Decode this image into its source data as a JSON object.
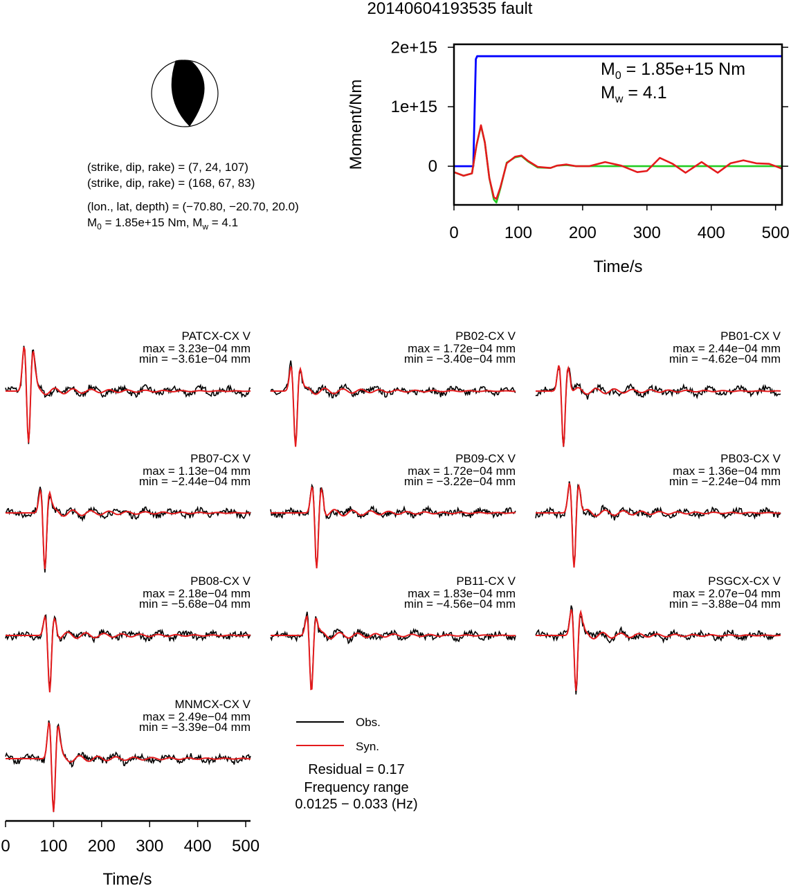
{
  "title": "20140604193535 fault",
  "solution": {
    "plane1": "(strike, dip, rake) = (7, 24, 107)",
    "plane2": "(strike, dip, rake) = (168, 67, 83)",
    "location": "(lon., lat, depth) = (−70.80, −20.70, 20.0)",
    "moment_label": "M",
    "moment_sub": "0",
    "moment_value": " = 1.85e+15 Nm, M",
    "mw_sub": "w",
    "mw_value": " = 4.1"
  },
  "colors": {
    "observed": "#000000",
    "synthetic": "#e41a1c",
    "cumulative_moment": "#0000ff",
    "moment_rate_green": "#22cc22",
    "beachball_fill": "#000000"
  },
  "legend": {
    "obs": "Obs.",
    "syn": "Syn.",
    "residual": "Residual = 0.17",
    "freq_title": "Frequency range",
    "freq_value": "0.0125 − 0.033 (Hz)"
  },
  "chart_data": [
    {
      "type": "line",
      "title": "",
      "xlabel": "Time/s",
      "ylabel": "Moment/Nm",
      "xlim": [
        0,
        510
      ],
      "ylim": [
        -650000000000000.0,
        2050000000000000.0
      ],
      "xticks": [
        "0",
        "100",
        "200",
        "300",
        "400",
        "500"
      ],
      "yticks": [
        "0",
        "1e+15",
        "2e+15"
      ],
      "annotation": {
        "m0_label": "M",
        "m0_sub": "0",
        "m0_value": " = 1.85e+15 Nm",
        "mw_label": "M",
        "mw_sub": "w",
        "mw_value": " = 4.1"
      },
      "series": [
        {
          "x": [
            0,
            30,
            34,
            36,
            510
          ],
          "y": [
            0,
            0,
            1800000000000000.0,
            1850000000000000.0,
            1850000000000000.0
          ]
        },
        {
          "x": [
            0,
            15,
            28,
            35,
            42,
            48,
            55,
            62,
            66,
            72,
            82,
            95,
            105,
            115,
            130,
            150,
            160,
            175,
            190,
            210,
            230,
            260,
            300,
            400,
            510
          ],
          "y": [
            -100000000000000.0,
            -160000000000000.0,
            -120000000000000.0,
            350000000000000.0,
            680000000000000.0,
            400000000000000.0,
            -200000000000000.0,
            -560000000000000.0,
            -610000000000000.0,
            -380000000000000.0,
            60000000000000.0,
            150000000000000.0,
            170000000000000.0,
            80000000000000.0,
            -20000000000000.0,
            -30000000000000.0,
            10000000000000.0,
            20000000000000.0,
            0,
            0,
            0,
            0,
            0,
            0,
            0
          ]
        },
        {
          "x": [
            0,
            15,
            28,
            35,
            42,
            48,
            55,
            62,
            66,
            72,
            82,
            95,
            105,
            115,
            130,
            150,
            160,
            175,
            190,
            210,
            235,
            260,
            285,
            300,
            320,
            340,
            360,
            385,
            410,
            430,
            450,
            470,
            490,
            510
          ],
          "y": [
            -100000000000000.0,
            -160000000000000.0,
            -120000000000000.0,
            350000000000000.0,
            690000000000000.0,
            400000000000000.0,
            -200000000000000.0,
            -520000000000000.0,
            -550000000000000.0,
            -360000000000000.0,
            50000000000000.0,
            160000000000000.0,
            180000000000000.0,
            90000000000000.0,
            -10000000000000.0,
            -30000000000000.0,
            10000000000000.0,
            30000000000000.0,
            0,
            0,
            70000000000000.0,
            10000000000000.0,
            -100000000000000.0,
            -80000000000000.0,
            140000000000000.0,
            40000000000000.0,
            -110000000000000.0,
            70000000000000.0,
            -110000000000000.0,
            50000000000000.0,
            100000000000000.0,
            50000000000000.0,
            40000000000000.0,
            -40000000000000.0
          ]
        }
      ]
    },
    {
      "type": "line",
      "title": "",
      "xlabel": "Time/s",
      "ylabel": "",
      "xlim": [
        0,
        510
      ],
      "xticks": [
        "0",
        "100",
        "200",
        "300",
        "400",
        "500"
      ],
      "legend": [
        "Obs.",
        "Syn."
      ],
      "stations": [
        {
          "name": "PATCX-CX V",
          "max": "max = 3.23e−04 mm",
          "min": "min = −3.61e−04 mm",
          "max_val": 0.000323,
          "min_val": -0.000361,
          "t_arrival": 48
        },
        {
          "name": "PB02-CX V",
          "max": "max = 1.72e−04 mm",
          "min": "min = −3.40e−04 mm",
          "max_val": 0.000172,
          "min_val": -0.00034,
          "t_arrival": 52
        },
        {
          "name": "PB01-CX V",
          "max": "max = 2.44e−04 mm",
          "min": "min = −4.62e−04 mm",
          "max_val": 0.000244,
          "min_val": -0.000462,
          "t_arrival": 58
        },
        {
          "name": "PB07-CX V",
          "max": "max = 1.13e−04 mm",
          "min": "min = −2.44e−04 mm",
          "max_val": 0.000113,
          "min_val": -0.000244,
          "t_arrival": 82
        },
        {
          "name": "PB09-CX V",
          "max": "max = 1.72e−04 mm",
          "min": "min = −3.22e−04 mm",
          "max_val": 0.000172,
          "min_val": -0.000322,
          "t_arrival": 96
        },
        {
          "name": "PB03-CX V",
          "max": "max = 1.36e−04 mm",
          "min": "min = −2.24e−04 mm",
          "max_val": 0.000136,
          "min_val": -0.000224,
          "t_arrival": 80
        },
        {
          "name": "PB08-CX V",
          "max": "max = 2.18e−04 mm",
          "min": "min = −5.68e−04 mm",
          "max_val": 0.000218,
          "min_val": -0.000568,
          "t_arrival": 92
        },
        {
          "name": "PB11-CX V",
          "max": "max = 1.83e−04 mm",
          "min": "min = −4.56e−04 mm",
          "max_val": 0.000183,
          "min_val": -0.000456,
          "t_arrival": 85
        },
        {
          "name": "PSGCX-CX V",
          "max": "max = 2.07e−04 mm",
          "min": "min = −3.88e−04 mm",
          "max_val": 0.000207,
          "min_val": -0.000388,
          "t_arrival": 84
        },
        {
          "name": "MNMCX-CX V",
          "max": "max = 2.49e−04 mm",
          "min": "min = −3.39e−04 mm",
          "max_val": 0.000249,
          "min_val": -0.000339,
          "t_arrival": 100
        }
      ]
    }
  ]
}
